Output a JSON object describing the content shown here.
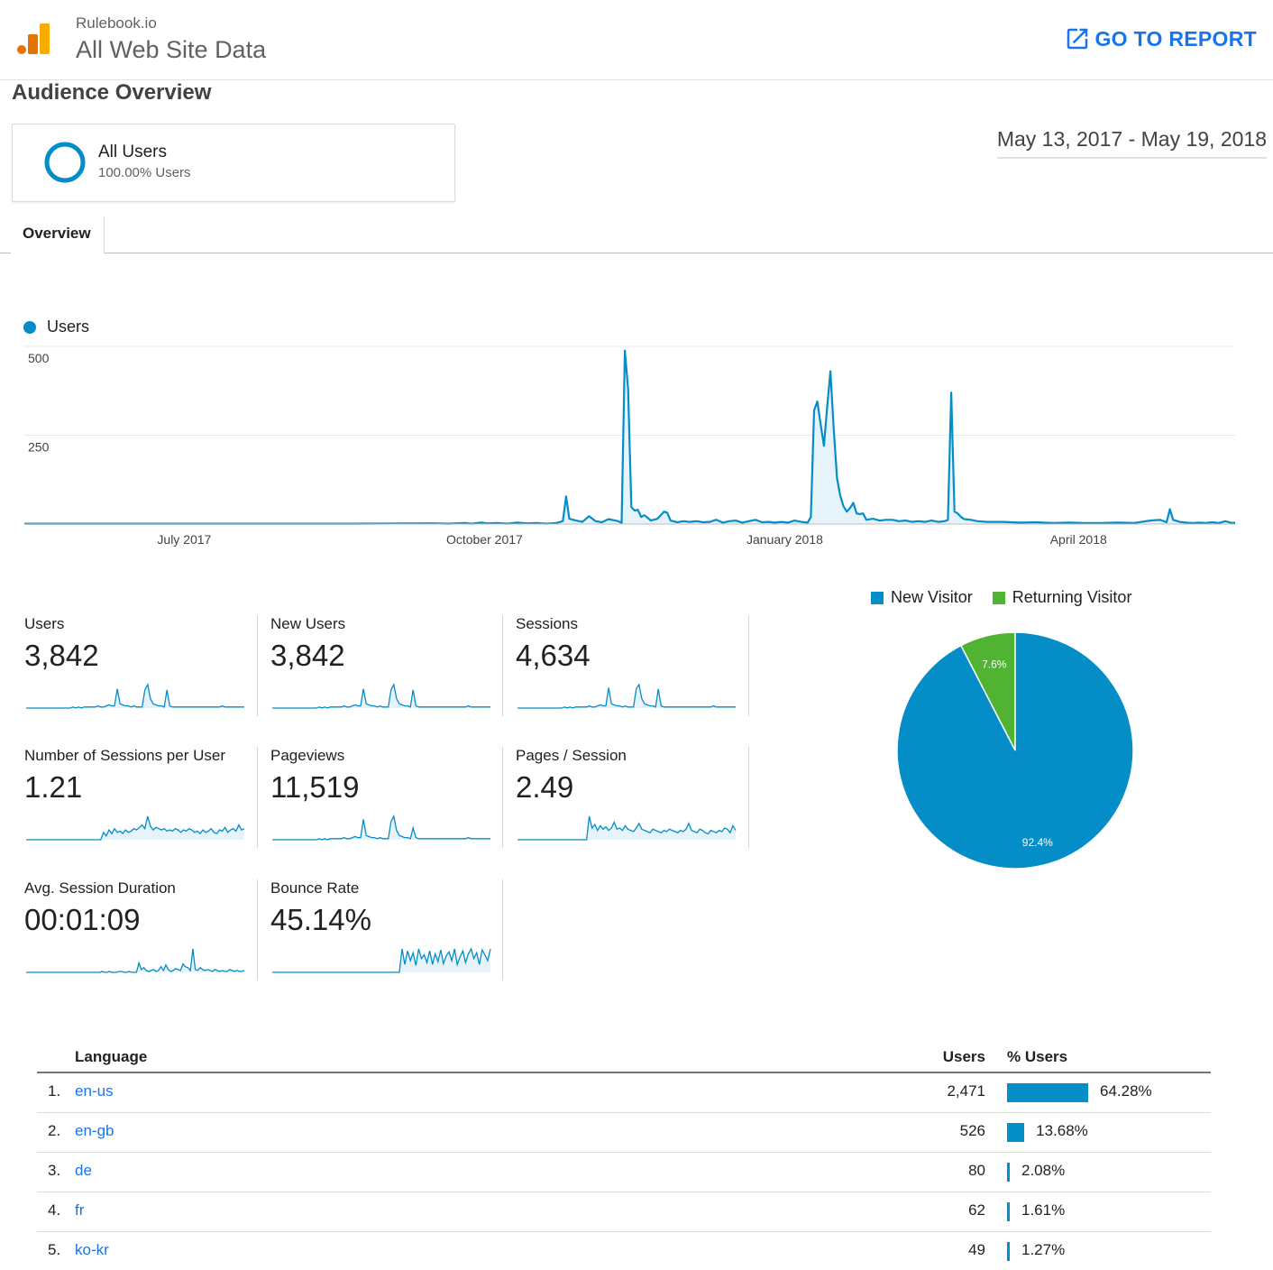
{
  "header": {
    "account": "Rulebook.io",
    "view": "All Web Site Data",
    "go_to_report": "GO TO REPORT"
  },
  "page_title": "Audience Overview",
  "segment": {
    "name": "All Users",
    "subtitle": "100.00% Users"
  },
  "date_range": "May 13, 2017 - May 19, 2018",
  "tabs": [
    {
      "label": "Overview"
    }
  ],
  "colors": {
    "accent": "#058dc7",
    "returning": "#50b432",
    "link": "#1a73e8"
  },
  "chart_data": [
    {
      "type": "area",
      "title": "Users",
      "legend": "Users",
      "ylim": [
        0,
        500
      ],
      "y_ticks": [
        "500",
        "250"
      ],
      "x_tick_labels": [
        "July 2017",
        "October 2017",
        "January 2018",
        "April 2018"
      ],
      "x_tick_days": [
        49,
        141,
        233,
        323
      ],
      "total_days": 371,
      "series": [
        {
          "name": "Users",
          "points": [
            [
              0,
              1
            ],
            [
              50,
              1
            ],
            [
              100,
              1
            ],
            [
              125,
              2
            ],
            [
              130,
              1
            ],
            [
              135,
              3
            ],
            [
              137,
              1
            ],
            [
              140,
              4
            ],
            [
              142,
              2
            ],
            [
              145,
              3
            ],
            [
              148,
              1
            ],
            [
              151,
              4
            ],
            [
              154,
              2
            ],
            [
              157,
              3
            ],
            [
              160,
              1
            ],
            [
              163,
              3
            ],
            [
              165,
              8
            ],
            [
              166,
              78
            ],
            [
              167,
              15
            ],
            [
              169,
              10
            ],
            [
              171,
              6
            ],
            [
              173,
              22
            ],
            [
              175,
              8
            ],
            [
              177,
              5
            ],
            [
              179,
              14
            ],
            [
              181,
              10
            ],
            [
              182,
              8
            ],
            [
              183,
              3
            ],
            [
              184,
              488
            ],
            [
              185,
              380
            ],
            [
              186,
              48
            ],
            [
              187,
              38
            ],
            [
              188,
              40
            ],
            [
              189,
              20
            ],
            [
              190,
              25
            ],
            [
              192,
              10
            ],
            [
              194,
              15
            ],
            [
              196,
              35
            ],
            [
              197,
              32
            ],
            [
              198,
              10
            ],
            [
              200,
              5
            ],
            [
              202,
              8
            ],
            [
              204,
              6
            ],
            [
              206,
              8
            ],
            [
              208,
              5
            ],
            [
              210,
              6
            ],
            [
              212,
              12
            ],
            [
              214,
              4
            ],
            [
              216,
              8
            ],
            [
              218,
              10
            ],
            [
              220,
              4
            ],
            [
              222,
              8
            ],
            [
              224,
              12
            ],
            [
              226,
              5
            ],
            [
              228,
              6
            ],
            [
              230,
              4
            ],
            [
              232,
              6
            ],
            [
              234,
              4
            ],
            [
              236,
              10
            ],
            [
              238,
              6
            ],
            [
              240,
              4
            ],
            [
              241,
              20
            ],
            [
              242,
              320
            ],
            [
              243,
              345
            ],
            [
              244,
              280
            ],
            [
              245,
              220
            ],
            [
              246,
              330
            ],
            [
              247,
              430
            ],
            [
              248,
              270
            ],
            [
              249,
              130
            ],
            [
              250,
              80
            ],
            [
              251,
              50
            ],
            [
              252,
              35
            ],
            [
              253,
              45
            ],
            [
              254,
              60
            ],
            [
              255,
              30
            ],
            [
              256,
              28
            ],
            [
              257,
              30
            ],
            [
              258,
              12
            ],
            [
              260,
              15
            ],
            [
              262,
              10
            ],
            [
              264,
              12
            ],
            [
              266,
              12
            ],
            [
              268,
              8
            ],
            [
              270,
              10
            ],
            [
              272,
              6
            ],
            [
              274,
              8
            ],
            [
              276,
              6
            ],
            [
              278,
              10
            ],
            [
              280,
              6
            ],
            [
              282,
              8
            ],
            [
              283,
              12
            ],
            [
              284,
              370
            ],
            [
              285,
              35
            ],
            [
              286,
              30
            ],
            [
              287,
              20
            ],
            [
              288,
              14
            ],
            [
              290,
              12
            ],
            [
              292,
              8
            ],
            [
              295,
              6
            ],
            [
              300,
              6
            ],
            [
              305,
              4
            ],
            [
              310,
              5
            ],
            [
              315,
              3
            ],
            [
              320,
              4
            ],
            [
              325,
              3
            ],
            [
              330,
              3
            ],
            [
              335,
              4
            ],
            [
              340,
              3
            ],
            [
              345,
              10
            ],
            [
              348,
              12
            ],
            [
              350,
              5
            ],
            [
              351,
              42
            ],
            [
              352,
              12
            ],
            [
              354,
              6
            ],
            [
              356,
              4
            ],
            [
              358,
              3
            ],
            [
              360,
              4
            ],
            [
              362,
              3
            ],
            [
              364,
              5
            ],
            [
              366,
              3
            ],
            [
              368,
              8
            ],
            [
              370,
              3
            ],
            [
              371,
              4
            ]
          ]
        }
      ]
    },
    {
      "type": "pie",
      "legend": [
        "New Visitor",
        "Returning Visitor"
      ],
      "categories": [
        "New Visitor",
        "Returning Visitor"
      ],
      "values": [
        92.4,
        7.6
      ],
      "labels": [
        "92.4%",
        "7.6%"
      ]
    }
  ],
  "metrics": [
    {
      "name": "Users",
      "value": "3,842",
      "spark": [
        0,
        0,
        0,
        0,
        0,
        0,
        0,
        0,
        0,
        0,
        0,
        0,
        0,
        0,
        0,
        0,
        0,
        1,
        0,
        1,
        0,
        1,
        1,
        1,
        1,
        1,
        2,
        1,
        1,
        2,
        3,
        2,
        2,
        18,
        4,
        3,
        2,
        2,
        1,
        2,
        1,
        1,
        1,
        17,
        22,
        9,
        4,
        3,
        2,
        2,
        1,
        17,
        2,
        1,
        1,
        1,
        1,
        1,
        1,
        1,
        1,
        1,
        1,
        1,
        1,
        1,
        1,
        1,
        1,
        1,
        1,
        2,
        1,
        1,
        1,
        1,
        1,
        1,
        1,
        1
      ]
    },
    {
      "name": "New Users",
      "value": "3,842",
      "spark": [
        0,
        0,
        0,
        0,
        0,
        0,
        0,
        0,
        0,
        0,
        0,
        0,
        0,
        0,
        0,
        0,
        0,
        1,
        0,
        1,
        0,
        1,
        1,
        1,
        1,
        1,
        2,
        1,
        1,
        2,
        3,
        2,
        2,
        18,
        4,
        3,
        2,
        2,
        1,
        2,
        1,
        1,
        1,
        17,
        22,
        9,
        4,
        3,
        2,
        2,
        1,
        17,
        2,
        1,
        1,
        1,
        1,
        1,
        1,
        1,
        1,
        1,
        1,
        1,
        1,
        1,
        1,
        1,
        1,
        1,
        1,
        2,
        1,
        1,
        1,
        1,
        1,
        1,
        1,
        1
      ]
    },
    {
      "name": "Sessions",
      "value": "4,634",
      "spark": [
        0,
        0,
        0,
        0,
        0,
        0,
        0,
        0,
        0,
        0,
        0,
        0,
        0,
        0,
        0,
        0,
        0,
        1,
        0,
        1,
        0,
        1,
        1,
        1,
        1,
        1,
        2,
        1,
        1,
        2,
        3,
        2,
        2,
        19,
        4,
        3,
        2,
        2,
        1,
        2,
        1,
        1,
        1,
        18,
        22,
        9,
        4,
        3,
        2,
        2,
        1,
        18,
        2,
        1,
        1,
        1,
        1,
        1,
        1,
        1,
        1,
        1,
        1,
        1,
        1,
        1,
        1,
        1,
        1,
        1,
        1,
        2,
        1,
        1,
        1,
        1,
        1,
        1,
        1,
        1
      ]
    },
    {
      "name": "Number of Sessions per User",
      "value": "1.21",
      "spark": [
        0,
        0,
        0,
        0,
        0,
        0,
        0,
        0,
        0,
        0,
        0,
        0,
        0,
        0,
        0,
        0,
        0,
        0,
        0,
        0,
        0,
        0,
        0,
        0,
        0,
        0,
        0,
        0,
        6,
        3,
        8,
        5,
        9,
        6,
        7,
        5,
        8,
        6,
        7,
        9,
        8,
        10,
        12,
        9,
        19,
        11,
        8,
        10,
        9,
        8,
        9,
        7,
        8,
        7,
        9,
        8,
        6,
        8,
        7,
        9,
        8,
        6,
        7,
        5,
        8,
        6,
        7,
        9,
        6,
        5,
        8,
        7,
        10,
        6,
        8,
        9,
        7,
        12,
        8,
        9
      ]
    },
    {
      "name": "Pageviews",
      "value": "11,519",
      "spark": [
        0,
        0,
        0,
        0,
        0,
        0,
        0,
        0,
        0,
        0,
        0,
        0,
        0,
        0,
        0,
        0,
        0,
        1,
        0,
        1,
        0,
        1,
        1,
        1,
        1,
        1,
        2,
        1,
        1,
        2,
        3,
        2,
        2,
        19,
        4,
        3,
        2,
        2,
        1,
        2,
        1,
        1,
        1,
        17,
        22,
        9,
        4,
        3,
        2,
        2,
        1,
        11,
        2,
        1,
        1,
        1,
        1,
        1,
        1,
        1,
        1,
        1,
        1,
        1,
        1,
        1,
        1,
        1,
        1,
        1,
        1,
        2,
        1,
        1,
        1,
        1,
        1,
        1,
        1,
        1
      ]
    },
    {
      "name": "Pages / Session",
      "value": "2.49",
      "spark": [
        0,
        0,
        0,
        0,
        0,
        0,
        0,
        0,
        0,
        0,
        0,
        0,
        0,
        0,
        0,
        0,
        0,
        0,
        0,
        0,
        0,
        0,
        0,
        0,
        0,
        0,
        20,
        10,
        13,
        8,
        12,
        9,
        11,
        8,
        10,
        15,
        9,
        10,
        8,
        12,
        9,
        8,
        7,
        10,
        14,
        9,
        8,
        7,
        6,
        9,
        8,
        7,
        6,
        8,
        7,
        9,
        8,
        7,
        6,
        8,
        7,
        9,
        14,
        8,
        7,
        6,
        9,
        8,
        6,
        5,
        8,
        7,
        6,
        8,
        7,
        10,
        9,
        6,
        12,
        8
      ]
    },
    {
      "name": "Avg. Session Duration",
      "value": "00:01:09",
      "spark": [
        0,
        0,
        0,
        0,
        0,
        0,
        0,
        0,
        0,
        0,
        0,
        0,
        0,
        0,
        0,
        0,
        0,
        0,
        0,
        0,
        0,
        0,
        0,
        0,
        0,
        0,
        0,
        0,
        0,
        0,
        0,
        1,
        0,
        0,
        1,
        0,
        0,
        0,
        1,
        1,
        0,
        0,
        1,
        0,
        0,
        0,
        10,
        3,
        5,
        2,
        1,
        2,
        3,
        1,
        2,
        6,
        2,
        8,
        3,
        1,
        2,
        4,
        3,
        2,
        9,
        6,
        5,
        2,
        25,
        3,
        2,
        5,
        3,
        2,
        3,
        2,
        1,
        3,
        2,
        1,
        2,
        1,
        1,
        3,
        2,
        1,
        2,
        1,
        1,
        2
      ]
    },
    {
      "name": "Bounce Rate",
      "value": "45.14%",
      "spark": [
        0,
        0,
        0,
        0,
        0,
        0,
        0,
        0,
        0,
        0,
        0,
        0,
        0,
        0,
        0,
        0,
        0,
        0,
        0,
        0,
        0,
        0,
        0,
        0,
        0,
        0,
        0,
        0,
        0,
        0,
        0,
        0,
        0,
        0,
        0,
        0,
        0,
        0,
        0,
        0,
        0,
        0,
        0,
        0,
        0,
        0,
        0,
        24,
        8,
        22,
        12,
        20,
        7,
        24,
        14,
        18,
        10,
        22,
        8,
        19,
        11,
        23,
        9,
        17,
        21,
        12,
        24,
        8,
        16,
        22,
        10,
        19,
        24,
        14,
        20,
        8,
        23,
        18,
        12,
        24
      ]
    }
  ],
  "language_table": {
    "headers": {
      "language": "Language",
      "users": "Users",
      "pct_users": "% Users"
    },
    "rows": [
      {
        "rank": "1.",
        "language": "en-us",
        "users": "2,471",
        "pct": "64.28%",
        "pct_value": 64.28
      },
      {
        "rank": "2.",
        "language": "en-gb",
        "users": "526",
        "pct": "13.68%",
        "pct_value": 13.68
      },
      {
        "rank": "3.",
        "language": "de",
        "users": "80",
        "pct": "2.08%",
        "pct_value": 2.08
      },
      {
        "rank": "4.",
        "language": "fr",
        "users": "62",
        "pct": "1.61%",
        "pct_value": 1.61
      },
      {
        "rank": "5.",
        "language": "ko-kr",
        "users": "49",
        "pct": "1.27%",
        "pct_value": 1.27
      }
    ]
  }
}
